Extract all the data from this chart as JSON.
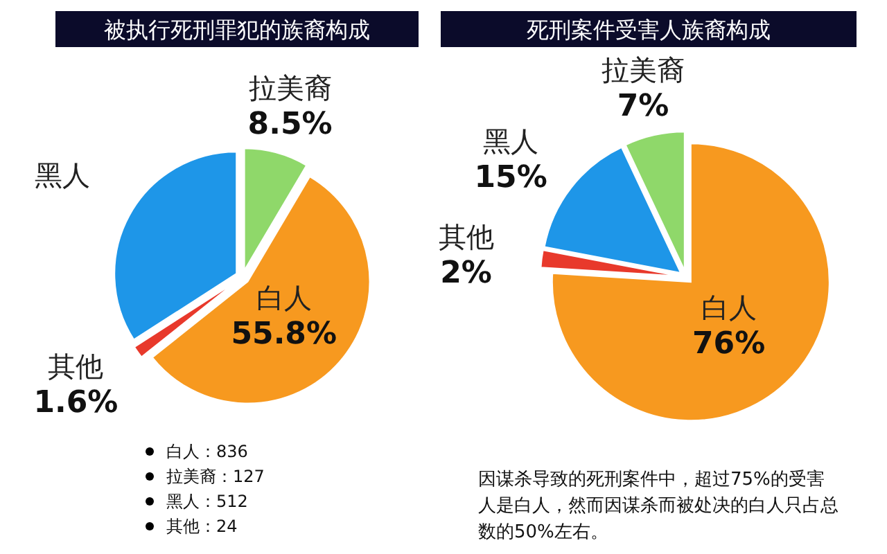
{
  "chart_data": [
    {
      "type": "pie",
      "title": "被执行死刑罪犯的族裔构成",
      "categories": [
        "拉美裔",
        "白人",
        "其他",
        "黑人"
      ],
      "values": [
        8.5,
        55.8,
        1.6,
        34.1
      ],
      "value_labels": [
        "8.5%",
        "55.8%",
        "1.6%",
        null
      ],
      "colors": [
        "#8fd86a",
        "#f7991f",
        "#e8392b",
        "#1e96e8"
      ],
      "annotations": [
        "白人：836",
        "拉美裔：127",
        "黑人：512",
        "其他：24"
      ]
    },
    {
      "type": "pie",
      "title": "死刑案件受害人族裔构成",
      "categories": [
        "白人",
        "其他",
        "黑人",
        "拉美裔"
      ],
      "values": [
        76,
        2,
        15,
        7
      ],
      "value_labels": [
        "76%",
        "2%",
        "15%",
        "7%"
      ],
      "colors": [
        "#f7991f",
        "#e8392b",
        "#1e96e8",
        "#8fd86a"
      ],
      "annotations": [
        "因谋杀导致的死刑案件中，超过75%的受害人是白人，然而因谋杀而被处决的白人只占总数的50%左右。"
      ]
    }
  ]
}
